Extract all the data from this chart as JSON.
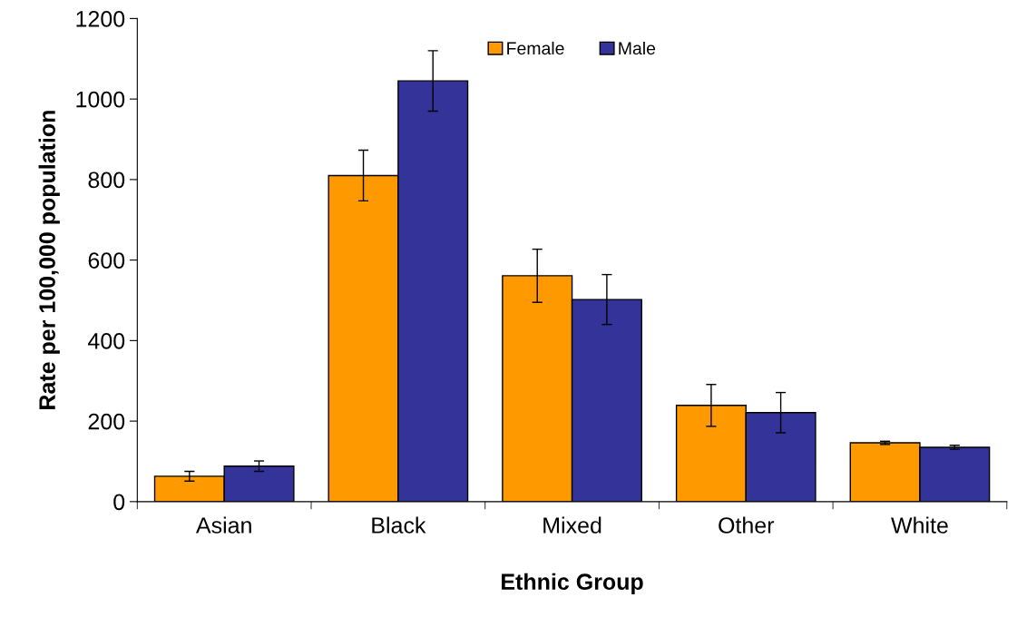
{
  "chart_data": {
    "type": "bar",
    "xlabel": "Ethnic Group",
    "ylabel": "Rate per 100,000 population",
    "categories": [
      "Asian",
      "Black",
      "Mixed",
      "Other",
      "White"
    ],
    "series": [
      {
        "name": "Female",
        "color": "#ff9900",
        "values": [
          63,
          810,
          561,
          239,
          146
        ],
        "errors": [
          12,
          63,
          66,
          52,
          4
        ]
      },
      {
        "name": "Male",
        "color": "#333399",
        "values": [
          88,
          1045,
          502,
          221,
          135
        ],
        "errors": [
          13,
          75,
          62,
          50,
          5
        ]
      }
    ],
    "ylim": [
      0,
      1200
    ],
    "yticks": [
      0,
      200,
      400,
      600,
      800,
      1000,
      1200
    ],
    "grid": false,
    "legend": "top"
  }
}
